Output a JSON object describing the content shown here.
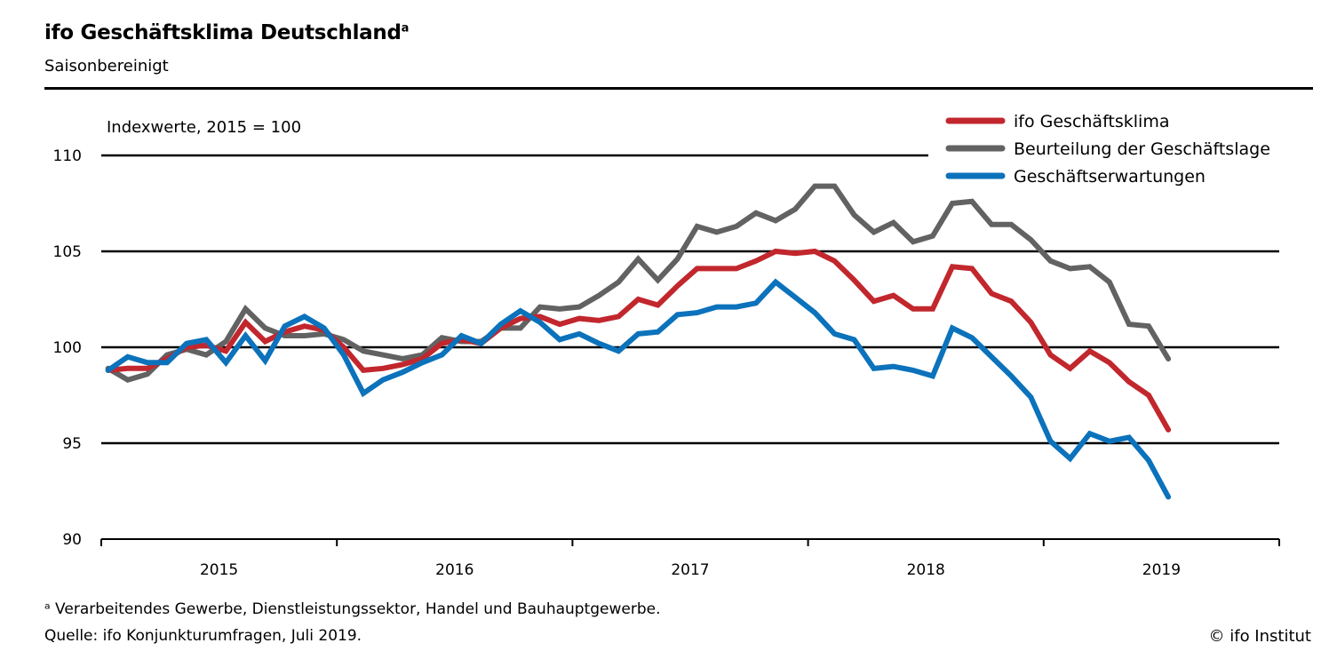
{
  "header": {
    "title": "ifo Geschäftsklima Deutschland",
    "title_superscript": "a",
    "subtitle": "Saisonbereinigt"
  },
  "footer": {
    "note": "ᵃ Verarbeitendes Gewerbe, Dienstleistungssektor, Handel und Bauhauptgewerbe.",
    "source": "Quelle: ifo Konjunkturumfragen, Juli 2019.",
    "copyright": "© ifo Institut"
  },
  "chart_data": {
    "type": "line",
    "ylabel": "Indexwerte, 2015 = 100",
    "ylim": [
      90,
      110
    ],
    "yticks": [
      "90",
      "95",
      "100",
      "105",
      "110"
    ],
    "ytick_values": [
      90,
      95,
      100,
      105,
      110
    ],
    "xticks": [
      "2015",
      "2016",
      "2017",
      "2018",
      "2019"
    ],
    "x_start": "2015-01",
    "x_end": "2019-07",
    "frequency": "monthly",
    "grid": true,
    "legend_position": "top-right",
    "series": [
      {
        "name": "ifo Geschäftsklima",
        "color": "#c1272d",
        "values": [
          98.8,
          98.9,
          98.9,
          99.4,
          100.0,
          100.1,
          99.8,
          101.3,
          100.3,
          100.8,
          101.1,
          100.9,
          100.0,
          98.8,
          98.9,
          99.1,
          99.4,
          100.2,
          100.4,
          100.2,
          101.0,
          101.5,
          101.6,
          101.2,
          101.5,
          101.4,
          101.6,
          102.5,
          102.2,
          103.2,
          104.1,
          104.1,
          104.1,
          104.5,
          105.0,
          104.9,
          105.0,
          104.5,
          103.5,
          102.4,
          102.7,
          102.0,
          102.0,
          104.2,
          104.1,
          102.8,
          102.4,
          101.3,
          99.6,
          98.9,
          99.8,
          99.2,
          98.2,
          97.5,
          95.7
        ]
      },
      {
        "name": "Beurteilung der Geschäftslage",
        "color": "#626262",
        "values": [
          98.9,
          98.3,
          98.6,
          99.6,
          99.9,
          99.6,
          100.3,
          102.0,
          101.0,
          100.6,
          100.6,
          100.7,
          100.4,
          99.8,
          99.6,
          99.4,
          99.6,
          100.5,
          100.3,
          100.3,
          101.0,
          101.0,
          102.1,
          102.0,
          102.1,
          102.7,
          103.4,
          104.6,
          103.5,
          104.6,
          106.3,
          106.0,
          106.3,
          107.0,
          106.6,
          107.2,
          108.4,
          108.4,
          106.9,
          106.0,
          106.5,
          105.5,
          105.8,
          107.5,
          107.6,
          106.4,
          106.4,
          105.6,
          104.5,
          104.1,
          104.2,
          103.4,
          101.2,
          101.1,
          99.4
        ]
      },
      {
        "name": "Geschäftserwartungen",
        "color": "#0b72bb",
        "values": [
          98.8,
          99.5,
          99.2,
          99.2,
          100.2,
          100.4,
          99.2,
          100.6,
          99.3,
          101.1,
          101.6,
          101.0,
          99.6,
          97.6,
          98.3,
          98.7,
          99.2,
          99.6,
          100.6,
          100.2,
          101.2,
          101.9,
          101.3,
          100.4,
          100.7,
          100.2,
          99.8,
          100.7,
          100.8,
          101.7,
          101.8,
          102.1,
          102.1,
          102.3,
          103.4,
          102.6,
          101.8,
          100.7,
          100.4,
          98.9,
          99.0,
          98.8,
          98.5,
          101.0,
          100.5,
          99.5,
          98.5,
          97.4,
          95.1,
          94.2,
          95.5,
          95.1,
          95.3,
          94.1,
          92.2
        ]
      }
    ]
  }
}
